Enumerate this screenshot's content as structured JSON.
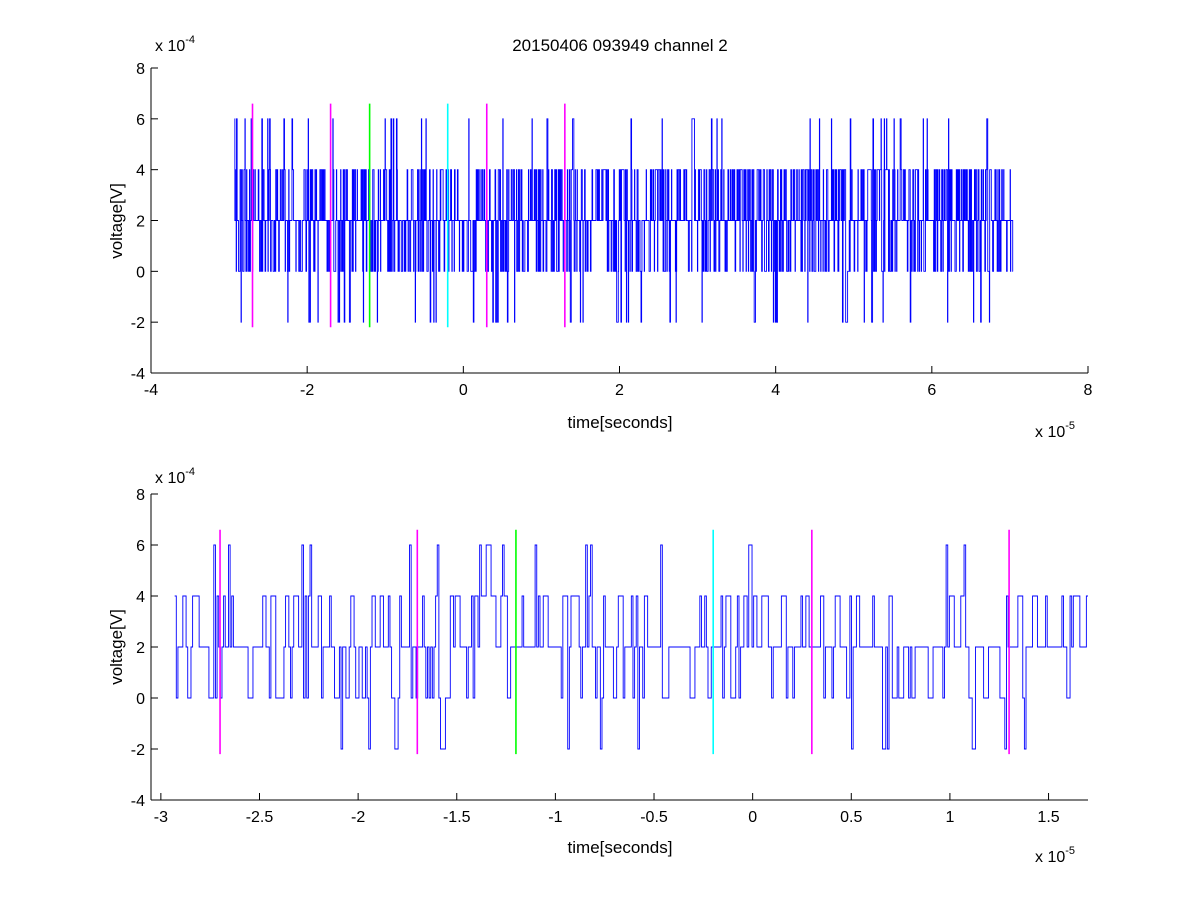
{
  "figure": {
    "title": "20150406 093949 channel 2"
  },
  "chart_data": [
    {
      "type": "line",
      "xlabel": "time[seconds]",
      "ylabel": "voltage[V]",
      "x_multiplier_label": "x 10",
      "x_multiplier_exp": "-5",
      "y_multiplier_label": "x 10",
      "y_multiplier_exp": "-4",
      "xlim": [
        -4,
        8
      ],
      "ylim": [
        -4,
        8
      ],
      "x_ticks": [
        -4,
        -2,
        0,
        2,
        4,
        6,
        8
      ],
      "y_ticks": [
        -4,
        -2,
        0,
        2,
        4,
        6,
        8
      ],
      "x_tick_labels": [
        "-4",
        "-2",
        "0",
        "2",
        "4",
        "6",
        "8"
      ],
      "y_tick_labels": [
        "-4",
        "-2",
        "0",
        "2",
        "4",
        "6",
        "8"
      ],
      "grid": false,
      "signal": {
        "color": "#0000ff",
        "x_range": [
          -2.93,
          7.04
        ],
        "levels": [
          -2,
          0,
          2,
          4,
          6
        ],
        "level_weights": [
          0.03,
          0.18,
          0.5,
          0.26,
          0.03
        ],
        "n_samples": 2400,
        "baseline": 2
      },
      "markers": [
        {
          "x": -2.7,
          "y_range": [
            -2.2,
            6.6
          ],
          "color": "#ff00ff"
        },
        {
          "x": -1.7,
          "y_range": [
            -2.2,
            6.6
          ],
          "color": "#ff00ff"
        },
        {
          "x": -1.2,
          "y_range": [
            -2.2,
            6.6
          ],
          "color": "#00ff00"
        },
        {
          "x": -0.2,
          "y_range": [
            -2.2,
            6.6
          ],
          "color": "#00ffff"
        },
        {
          "x": 0.3,
          "y_range": [
            -2.2,
            6.6
          ],
          "color": "#ff00ff"
        },
        {
          "x": 1.3,
          "y_range": [
            -2.2,
            6.6
          ],
          "color": "#ff00ff"
        }
      ]
    },
    {
      "type": "line",
      "xlabel": "time[seconds]",
      "ylabel": "voltage[V]",
      "x_multiplier_label": "x 10",
      "x_multiplier_exp": "-5",
      "y_multiplier_label": "x 10",
      "y_multiplier_exp": "-4",
      "xlim": [
        -3.05,
        1.7
      ],
      "ylim": [
        -4,
        8
      ],
      "x_ticks": [
        -3,
        -2.5,
        -2,
        -1.5,
        -1,
        -0.5,
        0,
        0.5,
        1,
        1.5
      ],
      "y_ticks": [
        -4,
        -2,
        0,
        2,
        4,
        6,
        8
      ],
      "x_tick_labels": [
        "-3",
        "-2.5",
        "-2",
        "-1.5",
        "-1",
        "-0.5",
        "0",
        "0.5",
        "1",
        "1.5"
      ],
      "y_tick_labels": [
        "-4",
        "-2",
        "0",
        "2",
        "4",
        "6",
        "8"
      ],
      "grid": false,
      "signal": {
        "color": "#0000ff",
        "x_range": [
          -2.93,
          1.7
        ],
        "levels": [
          -2,
          0,
          2,
          4,
          6
        ],
        "level_weights": [
          0.03,
          0.18,
          0.5,
          0.26,
          0.03
        ],
        "n_samples": 560,
        "baseline": 2
      },
      "markers": [
        {
          "x": -2.7,
          "y_range": [
            -2.2,
            6.6
          ],
          "color": "#ff00ff"
        },
        {
          "x": -1.7,
          "y_range": [
            -2.2,
            6.6
          ],
          "color": "#ff00ff"
        },
        {
          "x": -1.2,
          "y_range": [
            -2.2,
            6.6
          ],
          "color": "#00ff00"
        },
        {
          "x": -0.2,
          "y_range": [
            -2.2,
            6.6
          ],
          "color": "#00ffff"
        },
        {
          "x": 0.3,
          "y_range": [
            -2.2,
            6.6
          ],
          "color": "#ff00ff"
        },
        {
          "x": 1.3,
          "y_range": [
            -2.2,
            6.6
          ],
          "color": "#ff00ff"
        }
      ]
    }
  ]
}
